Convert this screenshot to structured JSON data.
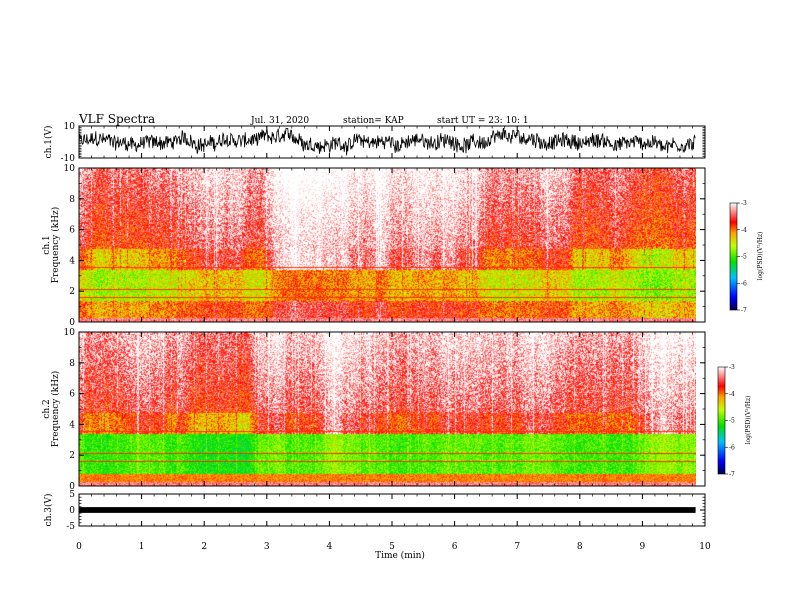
{
  "header": {
    "title": "VLF Spectra",
    "date": "Jul. 31, 2020",
    "station": "station= KAP",
    "start": "start UT =  23: 10: 1"
  },
  "colors": {
    "spectrogram_low": "#0000ff",
    "spectrogram_mid": "#00e000",
    "spectrogram_high": "#ff0000",
    "spectrogram_top": "#ffffff",
    "trace": "#000000"
  },
  "chart_data": [
    {
      "id": "ch1_waveform",
      "type": "line",
      "ylabel": "ch.1(V)",
      "ylim": [
        -10,
        10
      ],
      "yticks": [
        "10",
        "-10"
      ],
      "xlim": [
        0,
        10
      ],
      "description_shape": "noisy wideband signal oscillating between about -8 and +8 V"
    },
    {
      "id": "ch1_spectrogram",
      "type": "heatmap",
      "ylabel": "Frequency (kHz)",
      "channel_label": "ch.1",
      "ylim": [
        0,
        10
      ],
      "yticks": [
        "0",
        "2",
        "4",
        "6",
        "8",
        "10"
      ],
      "xlim": [
        0,
        10
      ],
      "data_end_min": 9.85,
      "colorbar": {
        "label": "log(PSD)(V²/Hz)",
        "range": [
          -7,
          -3
        ],
        "ticks": [
          "-3",
          "-4",
          "-5",
          "-6",
          "-7"
        ]
      }
    },
    {
      "id": "ch2_spectrogram",
      "type": "heatmap",
      "ylabel": "Frequency (kHz)",
      "channel_label": "ch.2",
      "ylim": [
        0,
        10
      ],
      "yticks": [
        "0",
        "2",
        "4",
        "6",
        "8",
        "10"
      ],
      "xlim": [
        0,
        10
      ],
      "data_end_min": 9.85,
      "colorbar": {
        "label": "log(PSD)(V²/Hz)",
        "range": [
          -7,
          -3
        ],
        "ticks": [
          "-3",
          "-4",
          "-5",
          "-6",
          "-7"
        ]
      }
    },
    {
      "id": "ch3_waveform",
      "type": "line",
      "ylabel": "ch.3(V)",
      "ylim": [
        -5,
        5
      ],
      "yticks": [
        "5",
        "0",
        "-5"
      ],
      "xlim": [
        0,
        10
      ],
      "xlabel": "Time (min)",
      "xticks": [
        "0",
        "1",
        "2",
        "3",
        "4",
        "5",
        "6",
        "7",
        "8",
        "9",
        "10"
      ]
    }
  ]
}
